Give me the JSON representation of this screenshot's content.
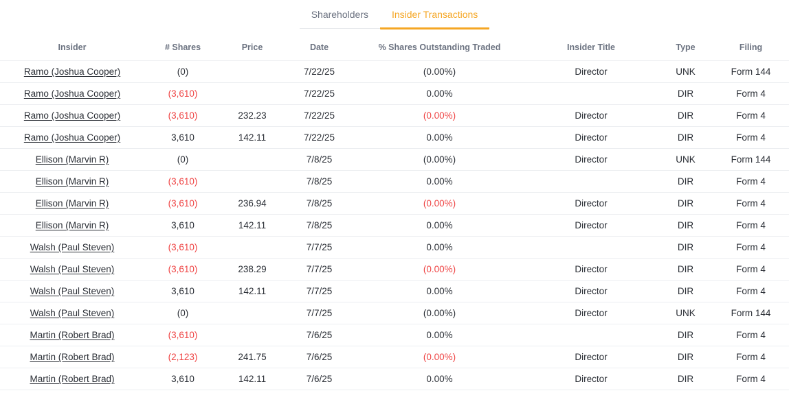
{
  "tabs": [
    {
      "label": "Shareholders",
      "active": false
    },
    {
      "label": "Insider Transactions",
      "active": true
    }
  ],
  "colors": {
    "active_tab_orange": "#f5a623",
    "negative_red": "#ef4444",
    "header_gray": "#6b7280",
    "text_dark": "#2a2e35",
    "divider": "#eceef1"
  },
  "table": {
    "columns": [
      "Insider",
      "# Shares",
      "Price",
      "Date",
      "% Shares Outstanding Traded",
      "Insider Title",
      "Type",
      "Filing"
    ],
    "rows": [
      {
        "insider": "Ramo (Joshua Cooper)",
        "shares": "(0)",
        "shares_red": false,
        "price": "",
        "date": "7/22/25",
        "pct": "(0.00%)",
        "pct_red": false,
        "title": "Director",
        "type": "UNK",
        "filing": "Form 144"
      },
      {
        "insider": "Ramo (Joshua Cooper)",
        "shares": "(3,610)",
        "shares_red": true,
        "price": "",
        "date": "7/22/25",
        "pct": "0.00%",
        "pct_red": false,
        "title": "",
        "type": "DIR",
        "filing": "Form 4"
      },
      {
        "insider": "Ramo (Joshua Cooper)",
        "shares": "(3,610)",
        "shares_red": true,
        "price": "232.23",
        "date": "7/22/25",
        "pct": "(0.00%)",
        "pct_red": true,
        "title": "Director",
        "type": "DIR",
        "filing": "Form 4"
      },
      {
        "insider": "Ramo (Joshua Cooper)",
        "shares": "3,610",
        "shares_red": false,
        "price": "142.11",
        "date": "7/22/25",
        "pct": "0.00%",
        "pct_red": false,
        "title": "Director",
        "type": "DIR",
        "filing": "Form 4"
      },
      {
        "insider": "Ellison (Marvin R)",
        "shares": "(0)",
        "shares_red": false,
        "price": "",
        "date": "7/8/25",
        "pct": "(0.00%)",
        "pct_red": false,
        "title": "Director",
        "type": "UNK",
        "filing": "Form 144"
      },
      {
        "insider": "Ellison (Marvin R)",
        "shares": "(3,610)",
        "shares_red": true,
        "price": "",
        "date": "7/8/25",
        "pct": "0.00%",
        "pct_red": false,
        "title": "",
        "type": "DIR",
        "filing": "Form 4"
      },
      {
        "insider": "Ellison (Marvin R)",
        "shares": "(3,610)",
        "shares_red": true,
        "price": "236.94",
        "date": "7/8/25",
        "pct": "(0.00%)",
        "pct_red": true,
        "title": "Director",
        "type": "DIR",
        "filing": "Form 4"
      },
      {
        "insider": "Ellison (Marvin R)",
        "shares": "3,610",
        "shares_red": false,
        "price": "142.11",
        "date": "7/8/25",
        "pct": "0.00%",
        "pct_red": false,
        "title": "Director",
        "type": "DIR",
        "filing": "Form 4"
      },
      {
        "insider": "Walsh (Paul Steven)",
        "shares": "(3,610)",
        "shares_red": true,
        "price": "",
        "date": "7/7/25",
        "pct": "0.00%",
        "pct_red": false,
        "title": "",
        "type": "DIR",
        "filing": "Form 4"
      },
      {
        "insider": "Walsh (Paul Steven)",
        "shares": "(3,610)",
        "shares_red": true,
        "price": "238.29",
        "date": "7/7/25",
        "pct": "(0.00%)",
        "pct_red": true,
        "title": "Director",
        "type": "DIR",
        "filing": "Form 4"
      },
      {
        "insider": "Walsh (Paul Steven)",
        "shares": "3,610",
        "shares_red": false,
        "price": "142.11",
        "date": "7/7/25",
        "pct": "0.00%",
        "pct_red": false,
        "title": "Director",
        "type": "DIR",
        "filing": "Form 4"
      },
      {
        "insider": "Walsh (Paul Steven)",
        "shares": "(0)",
        "shares_red": false,
        "price": "",
        "date": "7/7/25",
        "pct": "(0.00%)",
        "pct_red": false,
        "title": "Director",
        "type": "UNK",
        "filing": "Form 144"
      },
      {
        "insider": "Martin (Robert Brad)",
        "shares": "(3,610)",
        "shares_red": true,
        "price": "",
        "date": "7/6/25",
        "pct": "0.00%",
        "pct_red": false,
        "title": "",
        "type": "DIR",
        "filing": "Form 4"
      },
      {
        "insider": "Martin (Robert Brad)",
        "shares": "(2,123)",
        "shares_red": true,
        "price": "241.75",
        "date": "7/6/25",
        "pct": "(0.00%)",
        "pct_red": true,
        "title": "Director",
        "type": "DIR",
        "filing": "Form 4"
      },
      {
        "insider": "Martin (Robert Brad)",
        "shares": "3,610",
        "shares_red": false,
        "price": "142.11",
        "date": "7/6/25",
        "pct": "0.00%",
        "pct_red": false,
        "title": "Director",
        "type": "DIR",
        "filing": "Form 4"
      }
    ]
  }
}
